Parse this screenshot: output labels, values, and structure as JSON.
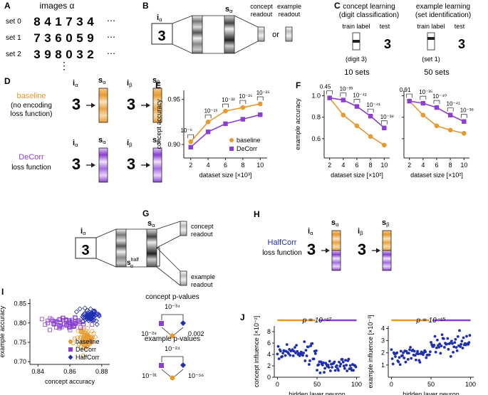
{
  "panels": {
    "A": {
      "letter": "A",
      "title": "images α",
      "rows": [
        {
          "label": "set 0",
          "digits": "8 4 1 7 3 4"
        },
        {
          "label": "set 1",
          "digits": "7 3 6 0 5 9"
        },
        {
          "label": "set 2",
          "digits": "3 9 8 0 3 2"
        }
      ],
      "ellipsis": "⋯",
      "vellipsis": "⋮"
    },
    "B": {
      "letter": "B",
      "input": "i",
      "input_sub": "α",
      "state": "s",
      "state_sub": "α",
      "digit": "3",
      "readout_concept": [
        "concept",
        "readout"
      ],
      "readout_example": [
        "example",
        "readout"
      ],
      "or": "or"
    },
    "C": {
      "letter": "C",
      "left_title": [
        "concept learning",
        "(digit classification)"
      ],
      "right_title": [
        "example learning",
        "(set identification)"
      ],
      "train_label": "train label",
      "test_label": "test",
      "test_sub": "iα",
      "left_note": "(digit 3)",
      "right_note": "(set 1)",
      "digit": "3"
    },
    "D": {
      "letter": "D",
      "baseline_label": [
        "baseline",
        "(no encoding",
        "loss function)"
      ],
      "decorr_label": [
        "DeCorr",
        "loss function"
      ],
      "i_alpha": "i",
      "s_alpha": "s",
      "i_beta": "i",
      "s_beta": "s",
      "sub_alpha": "α",
      "sub_beta": "β",
      "digit": "3"
    },
    "G": {
      "letter": "G",
      "input": "i",
      "input_sub": "α",
      "state": "s",
      "state_sub": "α",
      "half_state": "s",
      "half_sup": "half",
      "half_sub": "α",
      "digit": "3",
      "readout_concept": [
        "concept",
        "readout"
      ],
      "readout_example": [
        "example",
        "readout"
      ]
    },
    "H": {
      "letter": "H",
      "label": [
        "HalfCorr",
        "loss function"
      ],
      "i_alpha": "i",
      "s_alpha": "s",
      "i_beta": "i",
      "s_beta": "s",
      "sub_alpha": "α",
      "sub_beta": "β",
      "digit": "3"
    },
    "I_pvals": {
      "concept_title": "concept p-values",
      "concept_top": "10⁻³⁴",
      "concept_left": "10⁻²⁹",
      "concept_right": "0.002",
      "example_title": "example p-values",
      "example_top": "10⁻²⁴",
      "example_left": "10⁻³¹",
      "example_right": "10⁻⁵⁶"
    }
  },
  "colors": {
    "baseline": "#e69a2e",
    "decorr": "#8a3fd1",
    "halfcorr": "#1f2fb0",
    "scatter_blue": "#1f2fb0"
  },
  "chart_data": [
    {
      "id": "E",
      "letter": "E",
      "type": "line",
      "ylabel": "concept accuracy",
      "xlabel": "dataset size [×10³]",
      "x": [
        2,
        4,
        6,
        8,
        10
      ],
      "xlim": [
        1.2,
        10.8
      ],
      "ylim": [
        0.885,
        0.96
      ],
      "yticks": [
        0.9,
        0.95
      ],
      "ytick_labels": [
        "0.90",
        "0.95"
      ],
      "xticks": [
        2,
        4,
        6,
        8,
        10
      ],
      "series": [
        {
          "name": "baseline",
          "values": [
            0.903,
            0.925,
            0.937,
            0.941,
            0.945
          ]
        },
        {
          "name": "DeCorr",
          "values": [
            0.897,
            0.914,
            0.923,
            0.928,
            0.933
          ]
        }
      ],
      "pvalues": [
        "10⁻⁶",
        "10⁻¹⁶",
        "10⁻²²",
        "10⁻²⁵",
        "10⁻²⁵"
      ],
      "legend": "bottom-right"
    },
    {
      "id": "F1",
      "letter": "F",
      "type": "line",
      "title": "10 sets",
      "ylabel": "example accuracy",
      "xlabel": "dataset size [×10²]",
      "x": [
        2,
        4,
        6,
        8,
        10
      ],
      "xlim": [
        1.2,
        10.8
      ],
      "ylim": [
        0.42,
        1.05
      ],
      "yticks": [
        0.6,
        0.8,
        1.0
      ],
      "ytick_labels": [
        "0.6",
        "0.8",
        "1.0"
      ],
      "xticks": [
        2,
        4,
        6,
        8,
        10
      ],
      "series": [
        {
          "name": "baseline",
          "values": [
            0.98,
            0.82,
            0.72,
            0.62,
            0.54
          ]
        },
        {
          "name": "DeCorr",
          "values": [
            0.98,
            0.96,
            0.9,
            0.81,
            0.7
          ]
        }
      ],
      "pvalues": [
        "0.45",
        "10⁻³³",
        "10⁻⁴²",
        "10⁻⁴¹",
        "10⁻³⁹"
      ]
    },
    {
      "id": "F2",
      "type": "line",
      "title": "50 sets",
      "xlabel": "dataset size [×10²]",
      "x": [
        2,
        4,
        6,
        8,
        10
      ],
      "xlim": [
        1.2,
        10.8
      ],
      "ylim": [
        0.42,
        1.05
      ],
      "yticks": [
        0.6,
        0.8,
        1.0
      ],
      "ytick_labels": [
        "",
        "",
        ""
      ],
      "xticks": [
        2,
        4,
        6,
        8,
        10
      ],
      "series": [
        {
          "name": "baseline",
          "values": [
            0.95,
            0.82,
            0.72,
            0.68,
            0.65
          ]
        },
        {
          "name": "DeCorr",
          "values": [
            0.95,
            0.93,
            0.89,
            0.82,
            0.76
          ]
        }
      ],
      "pvalues": [
        "0.91",
        "10⁻³⁵",
        "10⁻⁴⁰",
        "10⁻⁴¹",
        "10⁻³⁸"
      ]
    },
    {
      "id": "I",
      "letter": "I",
      "type": "scatter",
      "xlabel": "concept accuracy",
      "ylabel": "example accuracy",
      "xlim": [
        0.835,
        0.885
      ],
      "ylim": [
        0.693,
        0.862
      ],
      "xticks": [
        0.84,
        0.86,
        0.88
      ],
      "xtick_labels": [
        "0.84",
        "0.86",
        "0.88"
      ],
      "yticks": [
        0.7,
        0.75,
        0.8,
        0.85
      ],
      "ytick_labels": [
        "0.70",
        "0.75",
        "0.80",
        "0.85"
      ],
      "series": [
        {
          "name": "baseline",
          "marker": "circle",
          "center": [
            0.87,
            0.758
          ],
          "spread": [
            0.004,
            0.022
          ],
          "n": 80
        },
        {
          "name": "DeCorr",
          "marker": "square",
          "center": [
            0.858,
            0.8
          ],
          "spread": [
            0.008,
            0.01
          ],
          "n": 70
        },
        {
          "name": "HalfCorr",
          "marker": "diamond",
          "center": [
            0.872,
            0.82
          ],
          "spread": [
            0.005,
            0.012
          ],
          "n": 70
        }
      ],
      "legend": "lower-right"
    },
    {
      "id": "J1",
      "letter": "J",
      "type": "scatter",
      "ylabel": "concept influence [×10⁻²]",
      "xlabel": "hidden layer neuron",
      "xlim": [
        -4,
        104
      ],
      "ylim": [
        0,
        9
      ],
      "xticks": [
        0,
        50,
        100
      ],
      "yticks": [
        0,
        2,
        4,
        6,
        8
      ],
      "title": "p = 10⁻¹⁷",
      "segments": [
        {
          "name": "baseline",
          "range": [
            0,
            50
          ],
          "mean": 4.5,
          "sd": 1.3
        },
        {
          "name": "DeCorr",
          "range": [
            50,
            100
          ],
          "mean": 2.1,
          "sd": 0.9
        }
      ]
    },
    {
      "id": "J2",
      "type": "scatter",
      "ylabel": "example influence [×10⁻³]",
      "xlabel": "hidden layer neuron",
      "xlim": [
        -4,
        104
      ],
      "ylim": [
        0,
        4.2
      ],
      "xticks": [
        0,
        50,
        100
      ],
      "yticks": [
        1,
        2,
        3,
        4
      ],
      "title": "p = 10⁻¹⁵",
      "segments": [
        {
          "name": "baseline",
          "range": [
            0,
            50
          ],
          "mean": 1.8,
          "sd": 0.5
        },
        {
          "name": "DeCorr",
          "range": [
            50,
            100
          ],
          "mean": 2.7,
          "sd": 0.55
        }
      ]
    }
  ]
}
